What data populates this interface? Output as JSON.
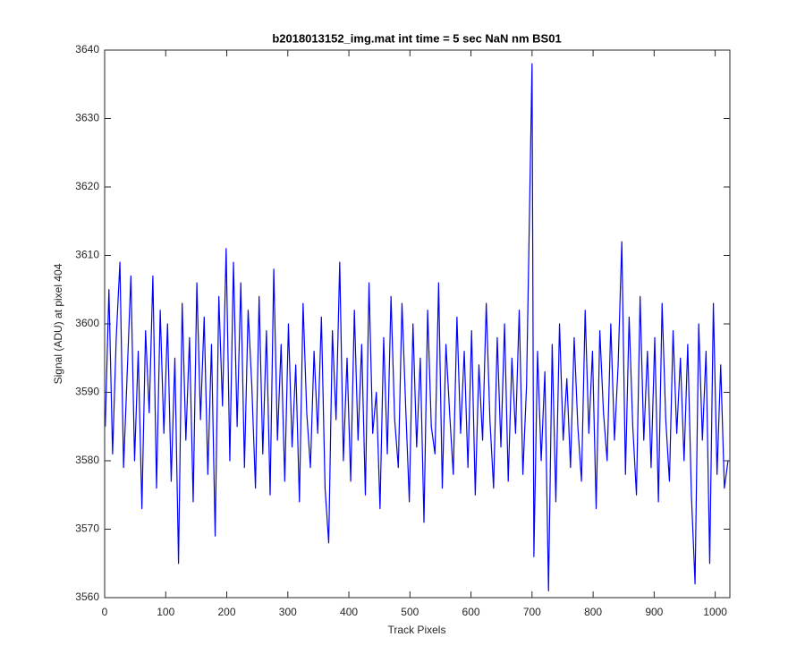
{
  "chart_data": {
    "type": "line",
    "title": "b2018013152_img.mat int time = 5 sec  NaN nm BS01",
    "xlabel": "Track Pixels",
    "ylabel": "Signal (ADU) at pixel 404",
    "xlim": [
      0,
      1024
    ],
    "xticks": [
      0,
      100,
      200,
      300,
      400,
      500,
      600,
      700,
      800,
      900,
      1000
    ],
    "ylim": [
      3560,
      3640
    ],
    "yticks": [
      3560,
      3570,
      3580,
      3590,
      3600,
      3610,
      3620,
      3630,
      3640
    ],
    "grid": false,
    "x": [
      1,
      7,
      13,
      19,
      25,
      31,
      37,
      43,
      49,
      55,
      61,
      67,
      73,
      79,
      85,
      91,
      97,
      103,
      109,
      115,
      121,
      127,
      133,
      139,
      145,
      151,
      157,
      163,
      169,
      175,
      181,
      187,
      193,
      199,
      205,
      211,
      217,
      223,
      229,
      235,
      241,
      247,
      253,
      259,
      265,
      271,
      277,
      283,
      289,
      295,
      301,
      307,
      313,
      319,
      325,
      331,
      337,
      343,
      349,
      355,
      361,
      367,
      373,
      379,
      385,
      391,
      397,
      403,
      409,
      415,
      421,
      427,
      433,
      439,
      445,
      451,
      457,
      463,
      469,
      475,
      481,
      487,
      493,
      499,
      505,
      511,
      517,
      523,
      529,
      535,
      541,
      547,
      553,
      559,
      565,
      571,
      577,
      583,
      589,
      595,
      601,
      607,
      613,
      619,
      625,
      631,
      637,
      643,
      649,
      655,
      661,
      667,
      673,
      679,
      685,
      691,
      700,
      703,
      709,
      715,
      721,
      727,
      733,
      739,
      745,
      751,
      757,
      763,
      769,
      775,
      781,
      787,
      793,
      799,
      805,
      811,
      817,
      823,
      829,
      835,
      841,
      847,
      853,
      859,
      865,
      871,
      877,
      883,
      889,
      895,
      901,
      907,
      913,
      919,
      925,
      931,
      937,
      943,
      949,
      955,
      961,
      967,
      973,
      979,
      985,
      991,
      997,
      1003,
      1009,
      1015,
      1021
    ],
    "series": [
      {
        "name": "signal",
        "color": "#0000ff",
        "values": [
          3585,
          3605,
          3581,
          3598,
          3609,
          3579,
          3593,
          3607,
          3580,
          3596,
          3573,
          3599,
          3587,
          3607,
          3576,
          3602,
          3584,
          3600,
          3577,
          3595,
          3565,
          3603,
          3583,
          3598,
          3574,
          3606,
          3586,
          3601,
          3578,
          3597,
          3569,
          3604,
          3588,
          3611,
          3580,
          3609,
          3585,
          3606,
          3579,
          3602,
          3591,
          3576,
          3604,
          3581,
          3599,
          3575,
          3608,
          3583,
          3597,
          3577,
          3600,
          3582,
          3594,
          3574,
          3603,
          3587,
          3579,
          3596,
          3584,
          3601,
          3576,
          3568,
          3599,
          3586,
          3609,
          3580,
          3595,
          3577,
          3602,
          3583,
          3597,
          3575,
          3606,
          3584,
          3590,
          3573,
          3598,
          3581,
          3604,
          3586,
          3579,
          3603,
          3588,
          3574,
          3600,
          3582,
          3595,
          3571,
          3602,
          3585,
          3581,
          3606,
          3576,
          3597,
          3587,
          3578,
          3601,
          3584,
          3596,
          3579,
          3599,
          3575,
          3594,
          3583,
          3603,
          3586,
          3576,
          3598,
          3582,
          3600,
          3577,
          3595,
          3584,
          3602,
          3578,
          3591,
          3638,
          3566,
          3596,
          3580,
          3593,
          3561,
          3597,
          3574,
          3600,
          3583,
          3592,
          3579,
          3598,
          3585,
          3577,
          3602,
          3584,
          3596,
          3573,
          3599,
          3587,
          3580,
          3600,
          3583,
          3594,
          3612,
          3578,
          3601,
          3585,
          3575,
          3604,
          3583,
          3596,
          3579,
          3598,
          3574,
          3603,
          3586,
          3577,
          3599,
          3584,
          3595,
          3580,
          3597,
          3575,
          3562,
          3600,
          3583,
          3596,
          3565,
          3603,
          3578,
          3594,
          3576,
          3580
        ]
      }
    ]
  }
}
